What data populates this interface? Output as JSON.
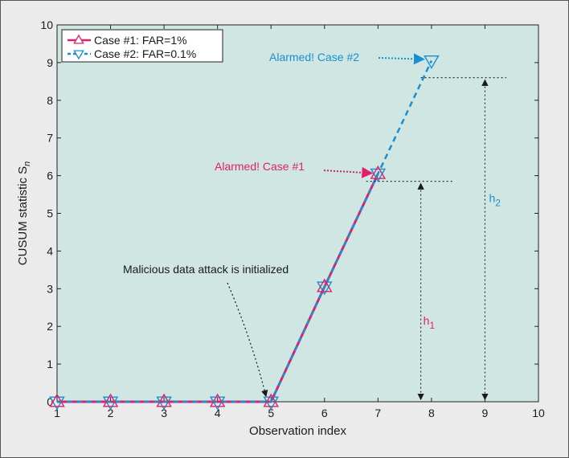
{
  "chart_data": {
    "type": "line",
    "xlabel": "Observation index",
    "ylabel_main": "CUSUM statistic S",
    "ylabel_sub": "n",
    "xlim": [
      1,
      10
    ],
    "ylim": [
      0,
      10
    ],
    "xticks": [
      "1",
      "2",
      "3",
      "4",
      "5",
      "6",
      "7",
      "8",
      "9",
      "10"
    ],
    "yticks": [
      "0",
      "1",
      "2",
      "3",
      "4",
      "5",
      "6",
      "7",
      "8",
      "9",
      "10"
    ],
    "grid": false,
    "legend_position": "top-left",
    "series": [
      {
        "name": "Case #1: FAR=1%",
        "x": [
          1,
          2,
          3,
          4,
          5,
          6,
          7
        ],
        "y": [
          0,
          0,
          0,
          0,
          0,
          3.05,
          6.05
        ],
        "color": "#e0206a",
        "line_style": "solid",
        "marker": "triangle-up"
      },
      {
        "name": "Case #2: FAR=0.1%",
        "x": [
          1,
          2,
          3,
          4,
          5,
          6,
          7,
          8
        ],
        "y": [
          0,
          0,
          0,
          0,
          0,
          3.05,
          6.05,
          9.05
        ],
        "color": "#1a8fd0",
        "line_style": "dashed",
        "marker": "triangle-down"
      }
    ],
    "thresholds": [
      {
        "label_main": "h",
        "label_sub": "1",
        "value": 5.85,
        "x": 7.8,
        "color": "#e0206a"
      },
      {
        "label_main": "h",
        "label_sub": "2",
        "value": 8.6,
        "x": 9.0,
        "color": "#1a8fd0"
      }
    ],
    "annotations": [
      {
        "text": "Alarmed! Case #1",
        "color": "#e0206a",
        "target_x": 7,
        "target_y": 6.05
      },
      {
        "text": "Alarmed! Case #2",
        "color": "#1a8fd0",
        "target_x": 8,
        "target_y": 9.05
      },
      {
        "text": "Malicious data attack is initialized",
        "color": "#1a1a1a",
        "target_x": 5,
        "target_y": 0
      }
    ]
  },
  "colors": {
    "plot_background": "#cfe6e2",
    "frame_background": "#ebebeb",
    "case1": "#e0206a",
    "case2": "#1a8fd0"
  }
}
